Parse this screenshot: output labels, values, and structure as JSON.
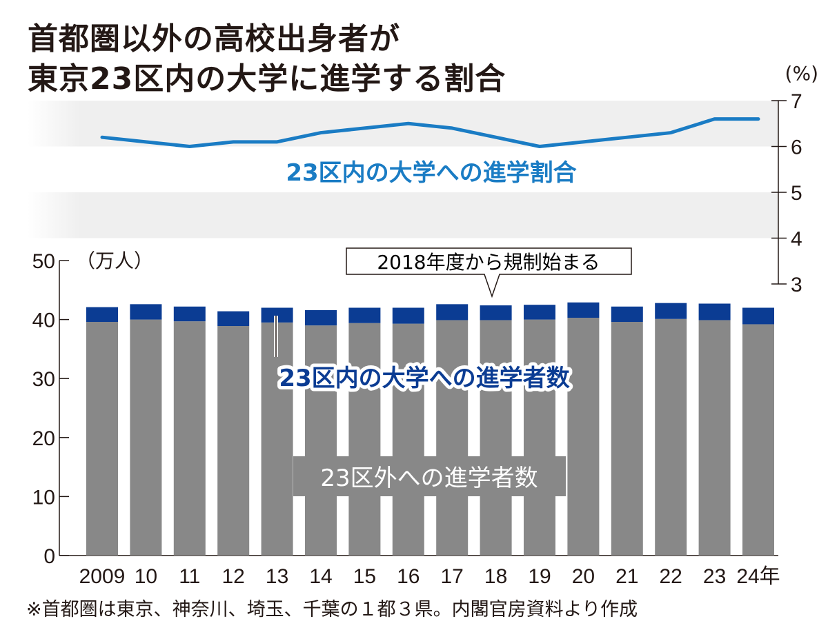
{
  "title_lines": [
    "首都圏以外の高校出身者が",
    "東京23区内の大学に進学する割合"
  ],
  "footnote": "※首都圏は東京、神奈川、埼玉、千葉の１都３県。内閣官房資料より作成",
  "colors": {
    "line": "#1a7cc4",
    "bar_inside": "#0b3c93",
    "bar_outside": "#888888",
    "band": "#efefef",
    "text": "#231815"
  },
  "chart_data": [
    {
      "type": "line",
      "x": [
        "2009",
        "10",
        "11",
        "12",
        "13",
        "14",
        "15",
        "16",
        "17",
        "18",
        "19",
        "20",
        "21",
        "22",
        "23",
        "24"
      ],
      "series": [
        {
          "name": "23区内の大学への進学割合",
          "values": [
            6.2,
            6.1,
            6.0,
            6.1,
            6.1,
            6.3,
            6.4,
            6.5,
            6.4,
            6.2,
            6.0,
            6.1,
            6.2,
            6.3,
            6.6,
            6.6
          ]
        }
      ],
      "ylabel": "(%)",
      "ylim": [
        3,
        7
      ],
      "yticks": [
        "7",
        "6",
        "5",
        "4",
        "3"
      ],
      "axis_side": "right"
    },
    {
      "type": "bar",
      "stacked": true,
      "categories": [
        "2009",
        "10",
        "11",
        "12",
        "13",
        "14",
        "15",
        "16",
        "17",
        "18",
        "19",
        "20",
        "21",
        "22",
        "23",
        "24年"
      ],
      "series": [
        {
          "name": "23区外への進学者数",
          "values": [
            39.6,
            40.0,
            39.7,
            38.9,
            39.5,
            39.0,
            39.4,
            39.3,
            39.9,
            39.9,
            40.0,
            40.3,
            39.6,
            40.1,
            39.9,
            39.2
          ]
        },
        {
          "name": "23区内の大学への進学者数",
          "values": [
            2.5,
            2.6,
            2.5,
            2.5,
            2.5,
            2.6,
            2.6,
            2.7,
            2.7,
            2.5,
            2.5,
            2.6,
            2.6,
            2.7,
            2.8,
            2.8
          ]
        }
      ],
      "ylabel": "（万人）",
      "ylim": [
        0,
        50
      ],
      "yticks": [
        "50",
        "40",
        "30",
        "20",
        "10",
        "0"
      ],
      "annotation": "2018年度から規制始まる"
    }
  ]
}
